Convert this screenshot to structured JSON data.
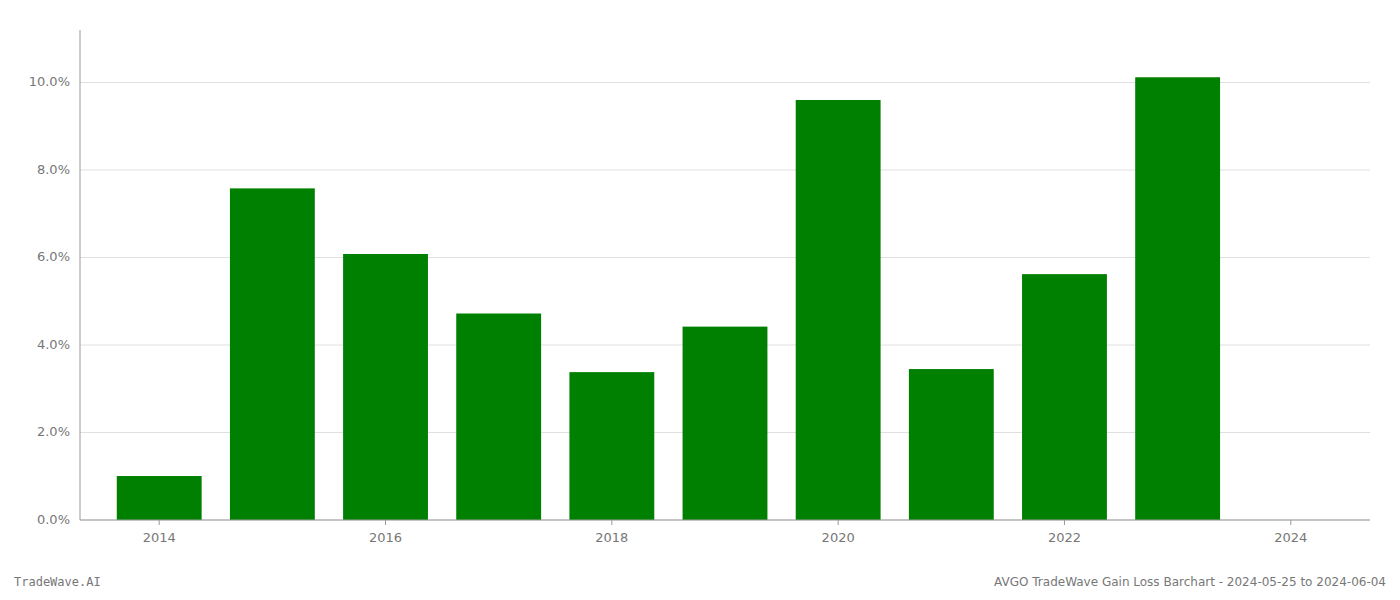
{
  "chart_data": {
    "type": "bar",
    "x": [
      2014,
      2015,
      2016,
      2017,
      2018,
      2019,
      2020,
      2021,
      2022,
      2023
    ],
    "values": [
      0.01005,
      0.0758,
      0.0608,
      0.0472,
      0.0338,
      0.0442,
      0.096,
      0.0345,
      0.0562,
      0.1012
    ],
    "color": "#008000",
    "xlim": [
      2013.3,
      2024.7
    ],
    "xticks": [
      2014,
      2016,
      2018,
      2020,
      2022,
      2024
    ],
    "ylim": [
      0,
      0.112
    ],
    "yticks": [
      {
        "value": 0.0,
        "label": "0.0%"
      },
      {
        "value": 0.02,
        "label": "2.0%"
      },
      {
        "value": 0.04,
        "label": "4.0%"
      },
      {
        "value": 0.06,
        "label": "6.0%"
      },
      {
        "value": 0.08,
        "label": "8.0%"
      },
      {
        "value": 0.1,
        "label": "10.0%"
      }
    ],
    "grid": true,
    "annotations": [
      "TradeWave.AI",
      "AVGO TradeWave Gain Loss Barchart - 2024-05-25 to 2024-06-04"
    ]
  }
}
